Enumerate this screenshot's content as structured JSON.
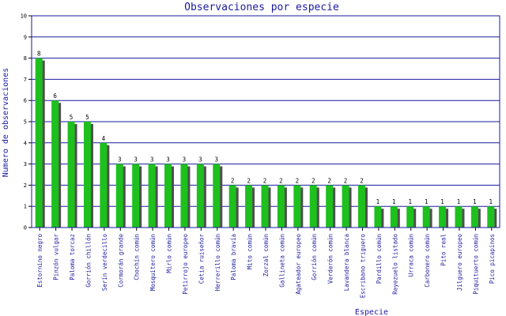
{
  "chart_data": {
    "type": "bar",
    "title": "Observaciones por especie",
    "xlabel": "Especie",
    "ylabel": "Numero de observaciones",
    "ylim": [
      0,
      10
    ],
    "yticks": [
      0,
      1,
      2,
      3,
      4,
      5,
      6,
      7,
      8,
      9,
      10
    ],
    "grid": true,
    "categories": [
      "Estornino negro",
      "Pinzón vulgar",
      "Paloma torcaz",
      "Gorrión chillón",
      "Serín verdecillo",
      "Cormorán grande",
      "Chochín común",
      "Mosquitero común",
      "Mirlo común",
      "Petirrojo europeo",
      "Cetia ruiseñor",
      "Herrerillo común",
      "Paloma bravía",
      "Mito común",
      "Zorzal común",
      "Gallineta común",
      "Agateador europeo",
      "Gorrión común",
      "Verderón común",
      "Lavandera blanca",
      "Escribano triguero",
      "Pardillo común",
      "Reyezuelo listado",
      "Urraca común",
      "Carbonero común",
      "Pito real",
      "Jilguero europeo",
      "Piquituerto común",
      "Pico picapinos"
    ],
    "values": [
      8,
      6,
      5,
      5,
      4,
      3,
      3,
      3,
      3,
      3,
      3,
      3,
      2,
      2,
      2,
      2,
      2,
      2,
      2,
      2,
      2,
      1,
      1,
      1,
      1,
      1,
      1,
      1,
      1
    ]
  },
  "colors": {
    "bar": "#1ec01e",
    "bar_shadow": "#505050",
    "grid": "#1a1aa0",
    "axis": "#000000",
    "text_axis": "#1a1aa0"
  }
}
